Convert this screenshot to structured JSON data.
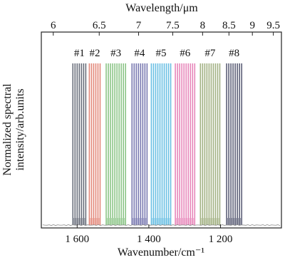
{
  "chart_data": {
    "type": "line",
    "subtype": "multi-band spectral lines (normalized)",
    "title": "",
    "xlabel": "Wavenumber/cm⁻¹",
    "x2label": "Wavelength/μm",
    "ylabel": "Normalized spectral intensity/arb.units",
    "x_reversed": true,
    "xlim": [
      1700,
      1030
    ],
    "x_ticks": [
      {
        "value": 1600,
        "label": "1 600"
      },
      {
        "value": 1400,
        "label": "1 400"
      },
      {
        "value": 1200,
        "label": "1 200"
      }
    ],
    "x2_ticks": [
      {
        "value": 6,
        "label": "6"
      },
      {
        "value": 6.5,
        "label": "6.5"
      },
      {
        "value": 7,
        "label": "7"
      },
      {
        "value": 7.5,
        "label": "7.5"
      },
      {
        "value": 8,
        "label": "8"
      },
      {
        "value": 8.5,
        "label": "8.5"
      },
      {
        "value": 9,
        "label": "9"
      },
      {
        "value": 9.5,
        "label": "9.5"
      }
    ],
    "ylim": [
      0,
      1
    ],
    "y_ticks_visible": false,
    "grid": false,
    "series": [
      {
        "label": "#1",
        "color": "#5a5f6e",
        "peaks": [
          1612,
          1606,
          1600,
          1594,
          1588,
          1582,
          1576
        ]
      },
      {
        "label": "#2",
        "color": "#e07b6c",
        "peaks": [
          1566,
          1560,
          1554,
          1548,
          1542,
          1536
        ]
      },
      {
        "label": "#3",
        "color": "#7fbf7a",
        "peaks": [
          1519,
          1513,
          1507,
          1501,
          1495,
          1489,
          1483,
          1477,
          1471,
          1465
        ]
      },
      {
        "label": "#4",
        "color": "#6a6aa8",
        "peaks": [
          1447,
          1441,
          1435,
          1429,
          1423,
          1417,
          1411,
          1405
        ]
      },
      {
        "label": "#5",
        "color": "#5ab8e0",
        "peaks": [
          1393,
          1387,
          1381,
          1375,
          1369,
          1363,
          1357,
          1351,
          1345,
          1339
        ]
      },
      {
        "label": "#6",
        "color": "#e47ab2",
        "peaks": [
          1326,
          1320,
          1314,
          1308,
          1302,
          1296,
          1290,
          1284,
          1278,
          1272
        ]
      },
      {
        "label": "#7",
        "color": "#98a876",
        "peaks": [
          1256,
          1250,
          1244,
          1238,
          1232,
          1226,
          1220,
          1214,
          1208,
          1202
        ]
      },
      {
        "label": "#8",
        "color": "#4a4e68",
        "peaks": [
          1183,
          1177,
          1171,
          1165,
          1159,
          1153,
          1147,
          1141
        ]
      }
    ]
  }
}
